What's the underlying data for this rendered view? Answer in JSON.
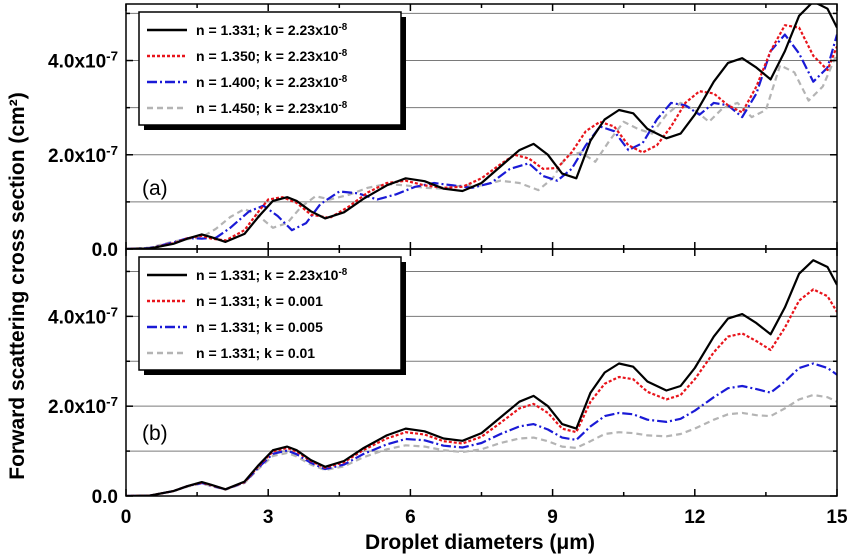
{
  "figure": {
    "ylabel": "Forward scattering cross section (cm²)",
    "xlabel": "Droplet diameters (μm)"
  },
  "chart_data": [
    {
      "type": "line",
      "panel_label": "(a)",
      "xlim": [
        0,
        15
      ],
      "ylim": [
        0,
        5.2e-07
      ],
      "grid": "horizontal",
      "legend_position": "top-left",
      "x_ticks": [
        "0",
        "3",
        "6",
        "9",
        "12",
        "15"
      ],
      "y_ticks": [
        {
          "value": 0,
          "label": "0.0",
          "exp": ""
        },
        {
          "value": 2e-07,
          "label": "2.0x10",
          "exp": "-7"
        },
        {
          "value": 4e-07,
          "label": "4.0x10",
          "exp": "-7"
        }
      ],
      "series": [
        {
          "name": "n = 1.331; k = 2.23x10",
          "name_exp": "-8",
          "color": "#000000",
          "dash": "",
          "x": [
            0,
            0.5,
            1.0,
            1.3,
            1.6,
            1.8,
            2.1,
            2.5,
            2.8,
            3.1,
            3.4,
            3.6,
            3.9,
            4.2,
            4.6,
            5.0,
            5.5,
            5.9,
            6.3,
            6.7,
            7.1,
            7.5,
            7.9,
            8.3,
            8.6,
            8.9,
            9.2,
            9.5,
            9.8,
            10.1,
            10.4,
            10.7,
            11.0,
            11.4,
            11.7,
            12.0,
            12.4,
            12.7,
            13.0,
            13.3,
            13.6,
            13.9,
            14.2,
            14.5,
            14.8,
            15.0
          ],
          "y": [
            0,
            1e-09,
            1.1e-08,
            2.2e-08,
            3.1e-08,
            2.5e-08,
            1.5e-08,
            3.2e-08,
            6.9e-08,
            1.02e-07,
            1.1e-07,
            1.02e-07,
            8e-08,
            6.5e-08,
            7.8e-08,
            1.06e-07,
            1.35e-07,
            1.5e-07,
            1.44e-07,
            1.28e-07,
            1.23e-07,
            1.4e-07,
            1.75e-07,
            2.1e-07,
            2.23e-07,
            2e-07,
            1.6e-07,
            1.5e-07,
            2.3e-07,
            2.75e-07,
            2.95e-07,
            2.88e-07,
            2.55e-07,
            2.35e-07,
            2.45e-07,
            2.85e-07,
            3.55e-07,
            3.95e-07,
            4.05e-07,
            3.85e-07,
            3.6e-07,
            4.2e-07,
            4.95e-07,
            5.25e-07,
            5.1e-07,
            4.7e-07
          ]
        },
        {
          "name": "n = 1.350; k = 2.23x10",
          "name_exp": "-8",
          "color": "#e8141b",
          "dash": "3,2",
          "x": [
            0,
            0.5,
            1.0,
            1.3,
            1.6,
            1.8,
            2.1,
            2.5,
            2.8,
            3.0,
            3.3,
            3.6,
            3.9,
            4.3,
            4.7,
            5.1,
            5.5,
            5.9,
            6.3,
            6.7,
            7.1,
            7.5,
            7.9,
            8.2,
            8.5,
            8.8,
            9.1,
            9.4,
            9.7,
            10.0,
            10.3,
            10.6,
            10.9,
            11.2,
            11.5,
            11.8,
            12.1,
            12.4,
            12.7,
            13.0,
            13.3,
            13.6,
            13.9,
            14.2,
            14.5,
            14.8,
            15.0
          ],
          "y": [
            0,
            1e-09,
            1.2e-08,
            2.3e-08,
            2.8e-08,
            2.2e-08,
            1.8e-08,
            4e-08,
            8e-08,
            1.05e-07,
            1.1e-07,
            9.8e-08,
            7.3e-08,
            6.6e-08,
            9e-08,
            1.2e-07,
            1.4e-07,
            1.45e-07,
            1.35e-07,
            1.3e-07,
            1.32e-07,
            1.5e-07,
            1.8e-07,
            2e-07,
            1.92e-07,
            1.7e-07,
            1.72e-07,
            2.05e-07,
            2.5e-07,
            2.7e-07,
            2.6e-07,
            2.2e-07,
            2.05e-07,
            2.2e-07,
            2.6e-07,
            3.1e-07,
            3.35e-07,
            3.3e-07,
            3.05e-07,
            2.9e-07,
            3.45e-07,
            4.2e-07,
            4.75e-07,
            4.7e-07,
            4.1e-07,
            3.8e-07,
            4.3e-07
          ]
        },
        {
          "name": "n = 1.400; k = 2.23x10",
          "name_exp": "-8",
          "color": "#1a1ad6",
          "dash": "10,3,2,3",
          "x": [
            0,
            0.5,
            1.0,
            1.3,
            1.6,
            1.9,
            2.2,
            2.6,
            2.9,
            3.2,
            3.5,
            3.8,
            4.1,
            4.5,
            4.9,
            5.3,
            5.7,
            6.1,
            6.5,
            6.9,
            7.3,
            7.7,
            8.1,
            8.5,
            8.8,
            9.1,
            9.4,
            9.7,
            10.0,
            10.3,
            10.6,
            10.9,
            11.2,
            11.5,
            11.8,
            12.1,
            12.4,
            12.7,
            13.0,
            13.3,
            13.6,
            13.9,
            14.2,
            14.5,
            14.8,
            15.0
          ],
          "y": [
            0,
            2e-09,
            1.4e-08,
            2.3e-08,
            2.2e-08,
            2.4e-08,
            4.5e-08,
            8e-08,
            9.2e-08,
            7e-08,
            4e-08,
            5.5e-08,
            9.5e-08,
            1.22e-07,
            1.18e-07,
            1.05e-07,
            1.16e-07,
            1.32e-07,
            1.4e-07,
            1.35e-07,
            1.3e-07,
            1.4e-07,
            1.7e-07,
            1.82e-07,
            1.55e-07,
            1.45e-07,
            1.7e-07,
            2.2e-07,
            2.6e-07,
            2.5e-07,
            2.1e-07,
            2.25e-07,
            2.75e-07,
            3.1e-07,
            3.05e-07,
            2.85e-07,
            3.1e-07,
            3.05e-07,
            2.8e-07,
            3.3e-07,
            4.2e-07,
            4.55e-07,
            4.15e-07,
            3.55e-07,
            3.85e-07,
            4.55e-07
          ]
        },
        {
          "name": "n = 1.450; k = 2.23x10",
          "name_exp": "-8",
          "color": "#b4b4b4",
          "dash": "6,4",
          "x": [
            0,
            0.5,
            1.0,
            1.3,
            1.6,
            1.9,
            2.2,
            2.5,
            2.8,
            3.1,
            3.4,
            3.7,
            4.0,
            4.3,
            4.7,
            5.1,
            5.5,
            5.9,
            6.3,
            6.7,
            7.1,
            7.5,
            7.9,
            8.3,
            8.7,
            9.0,
            9.3,
            9.6,
            9.9,
            10.2,
            10.5,
            10.8,
            11.1,
            11.4,
            11.7,
            12.0,
            12.3,
            12.6,
            12.9,
            13.2,
            13.5,
            13.8,
            14.1,
            14.4,
            14.7,
            15.0
          ],
          "y": [
            0,
            3e-09,
            1.6e-08,
            2.1e-08,
            2.5e-08,
            4.3e-08,
            6.8e-08,
            8.5e-08,
            7e-08,
            4.5e-08,
            5.5e-08,
            9e-08,
            1.12e-07,
            1.05e-07,
            1.15e-07,
            1.3e-07,
            1.38e-07,
            1.35e-07,
            1.3e-07,
            1.28e-07,
            1.35e-07,
            1.35e-07,
            1.45e-07,
            1.4e-07,
            1.25e-07,
            1.5e-07,
            1.98e-07,
            2.05e-07,
            1.85e-07,
            2.3e-07,
            2.7e-07,
            2.55e-07,
            2.45e-07,
            2.85e-07,
            3.1e-07,
            2.95e-07,
            2.7e-07,
            3e-07,
            3.1e-07,
            2.8e-07,
            2.95e-07,
            3.9e-07,
            3.75e-07,
            3.15e-07,
            3.45e-07,
            4.15e-07
          ]
        }
      ]
    },
    {
      "type": "line",
      "panel_label": "(b)",
      "xlim": [
        0,
        15
      ],
      "ylim": [
        0,
        5.5e-07
      ],
      "grid": "horizontal",
      "legend_position": "top-left",
      "x_ticks": [
        "0",
        "3",
        "6",
        "9",
        "12",
        "15"
      ],
      "y_ticks": [
        {
          "value": 0,
          "label": "0.0",
          "exp": ""
        },
        {
          "value": 2e-07,
          "label": "2.0x10",
          "exp": "-7"
        },
        {
          "value": 4e-07,
          "label": "4.0x10",
          "exp": "-7"
        }
      ],
      "series": [
        {
          "name": "n = 1.331; k = 2.23x10",
          "name_exp": "-8",
          "color": "#000000",
          "dash": "",
          "x": [
            0,
            0.5,
            1.0,
            1.3,
            1.6,
            1.8,
            2.1,
            2.5,
            2.8,
            3.1,
            3.4,
            3.6,
            3.9,
            4.2,
            4.6,
            5.0,
            5.5,
            5.9,
            6.3,
            6.7,
            7.1,
            7.5,
            7.9,
            8.3,
            8.6,
            8.9,
            9.2,
            9.5,
            9.8,
            10.1,
            10.4,
            10.7,
            11.0,
            11.4,
            11.7,
            12.0,
            12.4,
            12.7,
            13.0,
            13.3,
            13.6,
            13.9,
            14.2,
            14.5,
            14.8,
            15.0
          ],
          "y": [
            0,
            1e-09,
            1.1e-08,
            2.2e-08,
            3.1e-08,
            2.5e-08,
            1.5e-08,
            3.2e-08,
            6.9e-08,
            1.02e-07,
            1.1e-07,
            1.02e-07,
            8e-08,
            6.5e-08,
            7.8e-08,
            1.06e-07,
            1.35e-07,
            1.5e-07,
            1.44e-07,
            1.28e-07,
            1.23e-07,
            1.4e-07,
            1.75e-07,
            2.1e-07,
            2.23e-07,
            2e-07,
            1.6e-07,
            1.5e-07,
            2.3e-07,
            2.75e-07,
            2.95e-07,
            2.88e-07,
            2.55e-07,
            2.35e-07,
            2.45e-07,
            2.85e-07,
            3.55e-07,
            3.95e-07,
            4.05e-07,
            3.85e-07,
            3.6e-07,
            4.2e-07,
            4.95e-07,
            5.25e-07,
            5.1e-07,
            4.7e-07
          ]
        },
        {
          "name": "n = 1.331; k = 0.001",
          "name_exp": "",
          "color": "#e8141b",
          "dash": "3,2",
          "x": [
            0,
            0.5,
            1.0,
            1.3,
            1.6,
            1.8,
            2.1,
            2.5,
            2.8,
            3.1,
            3.4,
            3.6,
            3.9,
            4.2,
            4.6,
            5.0,
            5.5,
            5.9,
            6.3,
            6.7,
            7.1,
            7.5,
            7.9,
            8.3,
            8.6,
            8.9,
            9.2,
            9.5,
            9.8,
            10.1,
            10.4,
            10.7,
            11.0,
            11.4,
            11.7,
            12.0,
            12.4,
            12.7,
            13.0,
            13.3,
            13.6,
            13.9,
            14.2,
            14.5,
            14.8,
            15.0
          ],
          "y": [
            0,
            1e-09,
            1.1e-08,
            2.2e-08,
            3e-08,
            2.4e-08,
            1.5e-08,
            3.1e-08,
            6.7e-08,
            9.9e-08,
            1.07e-07,
            9.9e-08,
            7.8e-08,
            6.3e-08,
            7.5e-08,
            1.02e-07,
            1.28e-07,
            1.42e-07,
            1.37e-07,
            1.22e-07,
            1.17e-07,
            1.32e-07,
            1.63e-07,
            1.95e-07,
            2.05e-07,
            1.85e-07,
            1.5e-07,
            1.42e-07,
            2.1e-07,
            2.5e-07,
            2.65e-07,
            2.6e-07,
            2.32e-07,
            2.15e-07,
            2.25e-07,
            2.6e-07,
            3.2e-07,
            3.55e-07,
            3.62e-07,
            3.45e-07,
            3.25e-07,
            3.75e-07,
            4.35e-07,
            4.6e-07,
            4.45e-07,
            4.1e-07
          ]
        },
        {
          "name": "n = 1.331; k = 0.005",
          "name_exp": "",
          "color": "#1a1ad6",
          "dash": "10,3,2,3",
          "x": [
            0,
            0.5,
            1.0,
            1.3,
            1.6,
            1.8,
            2.1,
            2.5,
            2.8,
            3.1,
            3.4,
            3.6,
            3.9,
            4.2,
            4.6,
            5.0,
            5.5,
            5.9,
            6.3,
            6.7,
            7.1,
            7.5,
            7.9,
            8.3,
            8.6,
            8.9,
            9.2,
            9.5,
            9.8,
            10.1,
            10.4,
            10.7,
            11.0,
            11.4,
            11.7,
            12.0,
            12.4,
            12.7,
            13.0,
            13.3,
            13.6,
            13.9,
            14.2,
            14.5,
            14.8,
            15.0
          ],
          "y": [
            0,
            1e-09,
            1.1e-08,
            2.2e-08,
            2.9e-08,
            2.3e-08,
            1.5e-08,
            3e-08,
            6.4e-08,
            9.4e-08,
            1.01e-07,
            9.3e-08,
            7.4e-08,
            6e-08,
            7e-08,
            9.3e-08,
            1.15e-07,
            1.27e-07,
            1.24e-07,
            1.12e-07,
            1.08e-07,
            1.18e-07,
            1.38e-07,
            1.55e-07,
            1.6e-07,
            1.48e-07,
            1.3e-07,
            1.25e-07,
            1.55e-07,
            1.78e-07,
            1.85e-07,
            1.82e-07,
            1.7e-07,
            1.65e-07,
            1.72e-07,
            1.9e-07,
            2.2e-07,
            2.4e-07,
            2.45e-07,
            2.38e-07,
            2.3e-07,
            2.55e-07,
            2.85e-07,
            2.95e-07,
            2.85e-07,
            2.7e-07
          ]
        },
        {
          "name": "n = 1.331; k = 0.01",
          "name_exp": "",
          "color": "#b4b4b4",
          "dash": "6,4",
          "x": [
            0,
            0.5,
            1.0,
            1.3,
            1.6,
            1.8,
            2.1,
            2.5,
            2.8,
            3.1,
            3.4,
            3.6,
            3.9,
            4.2,
            4.6,
            5.0,
            5.5,
            5.9,
            6.3,
            6.7,
            7.1,
            7.5,
            7.9,
            8.3,
            8.6,
            8.9,
            9.2,
            9.5,
            9.8,
            10.1,
            10.4,
            10.7,
            11.0,
            11.4,
            11.7,
            12.0,
            12.4,
            12.7,
            13.0,
            13.3,
            13.6,
            13.9,
            14.2,
            14.5,
            14.8,
            15.0
          ],
          "y": [
            0,
            1e-09,
            1.1e-08,
            2.1e-08,
            2.8e-08,
            2.2e-08,
            1.4e-08,
            2.9e-08,
            6.1e-08,
            8.9e-08,
            9.6e-08,
            8.8e-08,
            7e-08,
            5.8e-08,
            6.6e-08,
            8.6e-08,
            1.04e-07,
            1.13e-07,
            1.1e-07,
            1.02e-07,
            9.8e-08,
            1.04e-07,
            1.18e-07,
            1.28e-07,
            1.3e-07,
            1.22e-07,
            1.1e-07,
            1.07e-07,
            1.22e-07,
            1.38e-07,
            1.42e-07,
            1.4e-07,
            1.35e-07,
            1.33e-07,
            1.38e-07,
            1.5e-07,
            1.7e-07,
            1.82e-07,
            1.85e-07,
            1.8e-07,
            1.78e-07,
            1.95e-07,
            2.15e-07,
            2.25e-07,
            2.2e-07,
            2.1e-07
          ]
        }
      ]
    }
  ]
}
